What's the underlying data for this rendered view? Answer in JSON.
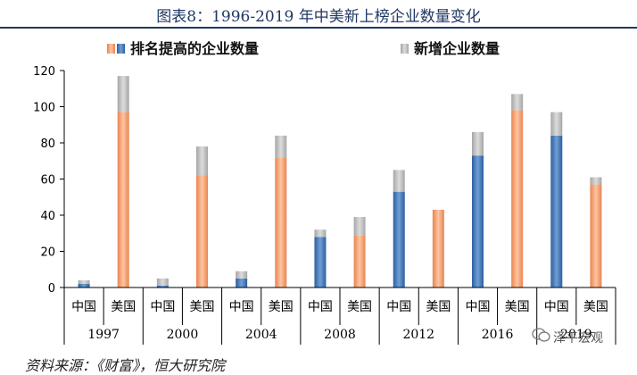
{
  "title": "图表8：1996-2019 年中美新上榜企业数量变化",
  "source": "资料来源：《财富》，恒大研究院",
  "watermark": "泽平宏观",
  "chart_data": {
    "type": "bar",
    "stacked": true,
    "years": [
      "1997",
      "2000",
      "2004",
      "2008",
      "2012",
      "2016",
      "2019"
    ],
    "countries": [
      "中国",
      "美国"
    ],
    "series": [
      {
        "name": "排名提高的企业数量",
        "colors": {
          "中国": "#4a7ab8",
          "美国": "#f4a070"
        },
        "values": [
          [
            2,
            97
          ],
          [
            1,
            62
          ],
          [
            5,
            72
          ],
          [
            28,
            29
          ],
          [
            53,
            43
          ],
          [
            73,
            98
          ],
          [
            84,
            57
          ]
        ]
      },
      {
        "name": "新增企业数量",
        "color": "#bfbfbf",
        "values": [
          [
            2,
            20
          ],
          [
            4,
            16
          ],
          [
            4,
            12
          ],
          [
            4,
            10
          ],
          [
            12,
            0
          ],
          [
            13,
            9
          ],
          [
            13,
            4
          ]
        ]
      }
    ],
    "ylim": [
      0,
      120
    ],
    "yticks": [
      0,
      20,
      40,
      60,
      80,
      100,
      120
    ],
    "legend_position": "top",
    "grid": false
  }
}
